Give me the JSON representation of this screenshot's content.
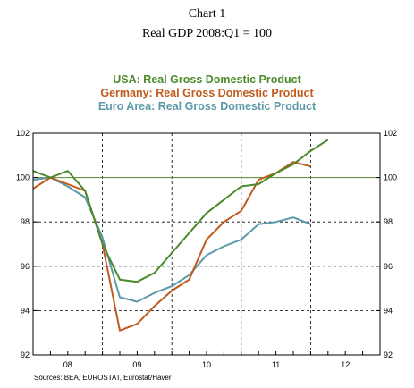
{
  "chart_data": {
    "type": "line",
    "title": "Chart 1",
    "subtitle": "Real GDP 2008:Q1 = 100",
    "ylim": [
      92,
      102
    ],
    "xlim": [
      "2007Q4",
      "2012Q4"
    ],
    "y_ticks": [
      "92",
      "94",
      "96",
      "98",
      "100",
      "102"
    ],
    "x_tick_labels": [
      "08",
      "09",
      "10",
      "11",
      "12"
    ],
    "reference_line": {
      "y": 100,
      "color": "#5a8a2a"
    },
    "grid": true,
    "legend_position": "top-center",
    "source": "Sources:  BEA, EUROSTAT, Eurostat/Haver",
    "series": [
      {
        "name": "USA:  Real Gross Domestic Product",
        "color": "#4a8a2a",
        "x": [
          "2007Q4",
          "2008Q1",
          "2008Q2",
          "2008Q3",
          "2008Q4",
          "2009Q1",
          "2009Q2",
          "2009Q3",
          "2009Q4",
          "2010Q1",
          "2010Q2",
          "2010Q3",
          "2010Q4",
          "2011Q1",
          "2011Q2",
          "2011Q3",
          "2011Q4",
          "2012Q1"
        ],
        "values": [
          100.3,
          100.0,
          100.3,
          99.4,
          97.0,
          95.4,
          95.3,
          95.7,
          96.6,
          97.5,
          98.4,
          99.0,
          99.6,
          99.7,
          100.2,
          100.6,
          101.2,
          101.7
        ]
      },
      {
        "name": "Germany: Real Gross Domestic Product",
        "color": "#c05a1e",
        "x": [
          "2007Q4",
          "2008Q1",
          "2008Q2",
          "2008Q3",
          "2008Q4",
          "2009Q1",
          "2009Q2",
          "2009Q3",
          "2009Q4",
          "2010Q1",
          "2010Q2",
          "2010Q3",
          "2010Q4",
          "2011Q1",
          "2011Q2",
          "2011Q3",
          "2011Q4"
        ],
        "values": [
          99.5,
          100.0,
          99.7,
          99.4,
          97.0,
          93.1,
          93.4,
          94.2,
          94.9,
          95.4,
          97.2,
          98.0,
          98.5,
          99.9,
          100.2,
          100.7,
          100.5
        ]
      },
      {
        "name": "Euro Area: Real Gross Domestic Product",
        "color": "#5b9aa8",
        "x": [
          "2007Q4",
          "2008Q1",
          "2008Q2",
          "2008Q3",
          "2008Q4",
          "2009Q1",
          "2009Q2",
          "2009Q3",
          "2009Q4",
          "2010Q1",
          "2010Q2",
          "2010Q3",
          "2010Q4",
          "2011Q1",
          "2011Q2",
          "2011Q3",
          "2011Q4"
        ],
        "values": [
          99.9,
          100.0,
          99.6,
          99.1,
          97.3,
          94.6,
          94.4,
          94.8,
          95.1,
          95.6,
          96.5,
          96.9,
          97.2,
          97.9,
          98.0,
          98.2,
          97.9
        ]
      }
    ]
  }
}
